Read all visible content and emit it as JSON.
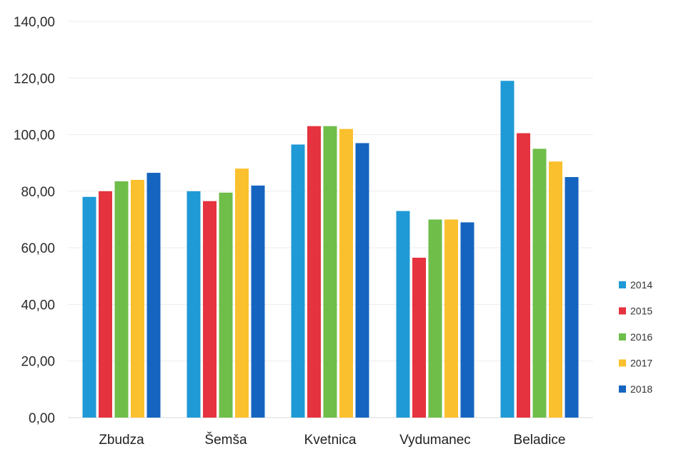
{
  "chart_data": {
    "type": "bar",
    "categories": [
      "Zbudza",
      "Šemša",
      "Kvetnica",
      "Vydumanec",
      "Beladice"
    ],
    "series": [
      {
        "name": "2014",
        "color": "#1f9ad6",
        "values": [
          78.0,
          80.0,
          96.5,
          73.0,
          119.0
        ]
      },
      {
        "name": "2015",
        "color": "#e5333f",
        "values": [
          80.0,
          76.5,
          103.0,
          56.5,
          100.5
        ]
      },
      {
        "name": "2016",
        "color": "#6fbe4a",
        "values": [
          83.5,
          79.5,
          103.0,
          70.0,
          95.0
        ]
      },
      {
        "name": "2017",
        "color": "#fbc02d",
        "values": [
          84.0,
          88.0,
          102.0,
          70.0,
          90.5
        ]
      },
      {
        "name": "2018",
        "color": "#1565c0",
        "values": [
          86.5,
          82.0,
          97.0,
          69.0,
          85.0
        ]
      }
    ],
    "y_ticks": [
      "0,00",
      "20,00",
      "40,00",
      "60,00",
      "80,00",
      "100,00",
      "120,00",
      "140,00"
    ],
    "ylim": [
      0,
      140
    ],
    "grid": true,
    "legend_position": "right",
    "title": "",
    "xlabel": "",
    "ylabel": ""
  }
}
